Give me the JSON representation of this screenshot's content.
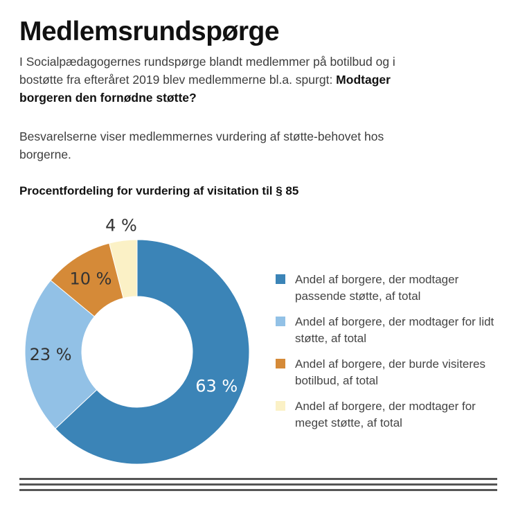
{
  "title": "Medlemsrundspørge",
  "intro": {
    "text": "I Socialpædagogernes rundspørge blandt medlemmer på botilbud og i bostøtte fra efteråret 2019 blev medlemmerne bl.a. spurgt: ",
    "question": "Modtager borgeren den fornødne støtte?"
  },
  "paragraph2": "Besvarelserne viser medlemmernes vurdering af støtte-behovet hos borgerne.",
  "chart_data": {
    "type": "pie",
    "subtitle": "Procentfordeling for vurdering af visitation til § 85",
    "donut": true,
    "slices": [
      {
        "label": "Andel af borgere, der modtager passende støtte, af total",
        "value": 63,
        "display": "63 %",
        "color": "#3b84b7",
        "text_color": "#ffffff"
      },
      {
        "label": "Andel af borgere, der modtager for lidt støtte, af total",
        "value": 23,
        "display": "23 %",
        "color": "#92c1e6",
        "text_color": "#333333"
      },
      {
        "label": "Andel af borgere, der burde visiteres botilbud, af total",
        "value": 10,
        "display": "10 %",
        "color": "#d58a38",
        "text_color": "#333333"
      },
      {
        "label": "Andel af borgere, der modtager for meget støtte, af total",
        "value": 4,
        "display": "4 %",
        "color": "#fbf1c6",
        "text_color": "#333333"
      }
    ],
    "legend_position": "right"
  }
}
